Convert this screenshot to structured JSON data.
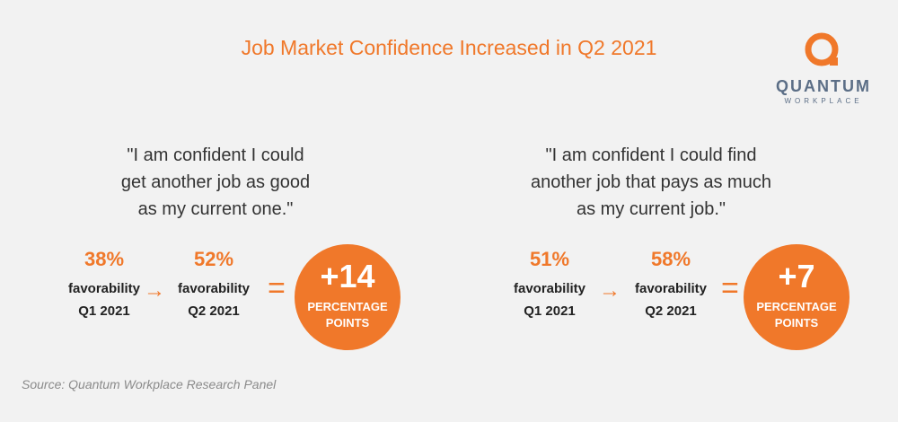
{
  "title": "Job Market Confidence Increased in Q2 2021",
  "logo": {
    "word": "QUANTUM",
    "sub": "WORKPLACE",
    "accent_color": "#f0782a",
    "text_color": "#5b6e86",
    "icon": "quantum-q-icon"
  },
  "panels": [
    {
      "quote": "\"I am confident I could\nget another job as good\nas my current one.\"",
      "before": {
        "pct": "38%",
        "label": "favorability",
        "quarter": "Q1 2021"
      },
      "after": {
        "pct": "52%",
        "label": "favorability",
        "quarter": "Q2 2021"
      },
      "arrow": "→",
      "equals": "=",
      "change": {
        "value": "+14",
        "line1": "PERCENTAGE",
        "line2": "POINTS"
      }
    },
    {
      "quote": "\"I am confident I could find\nanother job that pays as much\nas my current job.\"",
      "before": {
        "pct": "51%",
        "label": "favorability",
        "quarter": "Q1 2021"
      },
      "after": {
        "pct": "58%",
        "label": "favorability",
        "quarter": "Q2 2021"
      },
      "arrow": "→",
      "equals": "=",
      "change": {
        "value": "+7",
        "line1": "PERCENTAGE",
        "line2": "POINTS"
      }
    }
  ],
  "source": "Source: Quantum Workplace Research Panel",
  "colors": {
    "accent": "#f0782a",
    "background": "#f2f2f2"
  }
}
